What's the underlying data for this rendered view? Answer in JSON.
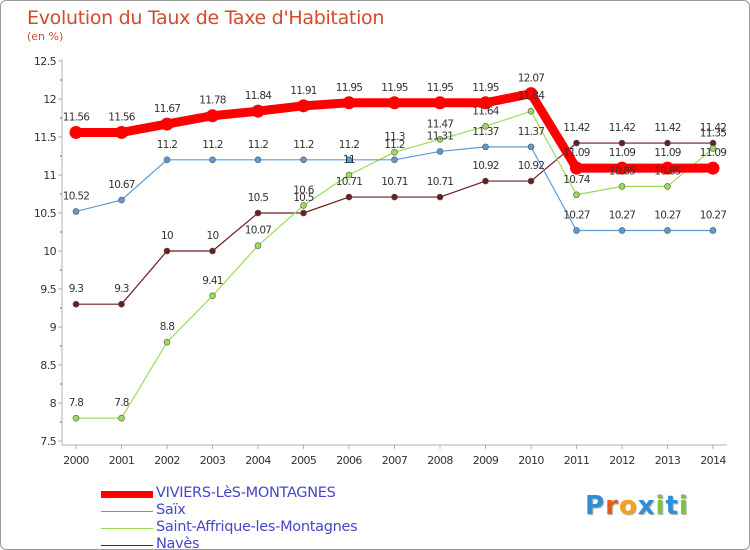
{
  "title": "Evolution du Taux de Taxe d'Habitation",
  "subtitle": "(en %)",
  "chart_data": {
    "type": "line",
    "title": "Evolution du Taux de Taxe d'Habitation",
    "ylabel": "(en %)",
    "xlabel": "",
    "x": [
      "2000",
      "2001",
      "2002",
      "2003",
      "2004",
      "2005",
      "2006",
      "2007",
      "2008",
      "2009",
      "2010",
      "2011",
      "2012",
      "2013",
      "2014"
    ],
    "yticks": [
      "7.5",
      "8",
      "8.5",
      "9",
      "9.5",
      "10",
      "10.5",
      "11",
      "11.5",
      "12",
      "12.5"
    ],
    "ylim": [
      7.5,
      12.5
    ],
    "grid": false,
    "legend": "bottom-left",
    "series": [
      {
        "name": "VIVIERS-LèS-MONTAGNES",
        "color": "#ff0000",
        "values": [
          11.56,
          11.56,
          11.67,
          11.78,
          11.84,
          11.91,
          11.95,
          11.95,
          11.95,
          11.95,
          12.07,
          11.09,
          11.09,
          11.09,
          11.09
        ],
        "labels": [
          "11.56",
          "11.56",
          "11.67",
          "11.78",
          "11.84",
          "11.91",
          "11.95",
          "11.95",
          "11.95",
          "11.95",
          "12.07",
          "11.09",
          "11.09",
          "11.09",
          "11.09"
        ]
      },
      {
        "name": "Saïx",
        "color": "#5a9bd5",
        "values": [
          10.52,
          10.67,
          11.2,
          11.2,
          11.2,
          11.2,
          11.2,
          11.2,
          11.31,
          11.37,
          11.37,
          10.27,
          10.27,
          10.27,
          10.27
        ],
        "labels": [
          "10.52",
          "10.67",
          "11.2",
          "11.2",
          "11.2",
          "11.2",
          "11.2",
          "11.2",
          "11.31",
          "11.37",
          "11.37",
          "10.27",
          "10.27",
          "10.27",
          "10.27"
        ]
      },
      {
        "name": "Saint-Affrique-les-Montagnes",
        "color": "#99dd55",
        "values": [
          7.8,
          7.8,
          8.8,
          9.41,
          10.07,
          10.6,
          11,
          11.3,
          11.47,
          11.64,
          11.84,
          10.74,
          10.85,
          10.85,
          11.35
        ],
        "labels": [
          "7.8",
          "7.8",
          "8.8",
          "9.41",
          "10.07",
          "10.6",
          "11",
          "11.3",
          "11.47",
          "11.64",
          "11.84",
          "10.74",
          "10.85",
          "10.85",
          "11.35"
        ]
      },
      {
        "name": "Navès",
        "color": "#6b1e1e",
        "values": [
          9.3,
          9.3,
          10,
          10,
          10.5,
          10.5,
          10.71,
          10.71,
          10.71,
          10.92,
          10.92,
          11.42,
          11.42,
          11.42,
          11.42
        ],
        "labels": [
          "9.3",
          "9.3",
          "10",
          "10",
          "10.5",
          "10.5",
          "10.71",
          "10.71",
          "10.71",
          "10.92",
          "10.92",
          "11.42",
          "11.42",
          "11.42",
          "11.42"
        ]
      }
    ]
  },
  "legend": {
    "items": [
      {
        "label": "VIVIERS-LèS-MONTAGNES",
        "color": "#ff0000"
      },
      {
        "label": "Saïx",
        "color": "#5a9bd5"
      },
      {
        "label": "Saint-Affrique-les-Montagnes",
        "color": "#99dd55"
      },
      {
        "label": "Navès",
        "color": "#6b1e1e"
      }
    ]
  },
  "logo": {
    "text": "Proxiti",
    "colors": [
      "#2e8fd6",
      "#e85a1a",
      "#f2a31b",
      "#2e8fd6",
      "#7cc242",
      "#2e8fd6",
      "#7cc242"
    ]
  }
}
